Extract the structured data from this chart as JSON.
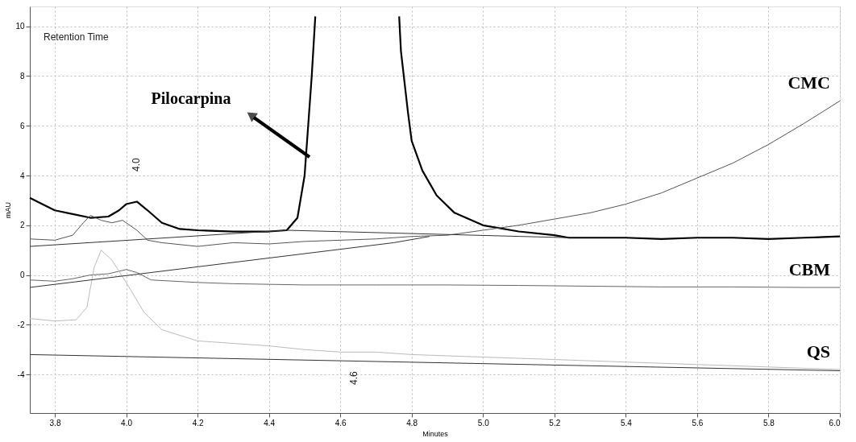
{
  "chart_data": {
    "type": "line",
    "xlabel": "Minutes",
    "ylabel": "mAU",
    "xlim": [
      3.73,
      6.0
    ],
    "ylim": [
      -5.55,
      10.8
    ],
    "xticks": [
      3.8,
      {
        "value": 4.0,
        "label": "4.0"
      },
      4.2,
      4.4,
      4.6,
      4.8,
      {
        "value": 5.0,
        "label": "5.0"
      },
      5.2,
      5.4,
      5.6,
      5.8,
      {
        "value": 6.0,
        "label": "6.0"
      }
    ],
    "yticks": [
      -4,
      -2,
      0,
      2,
      4,
      6,
      8,
      10
    ],
    "grid": true,
    "line_style": "solid",
    "series": [
      {
        "color": "#000000",
        "x": [
          3.73,
          3.8,
          3.85,
          3.9,
          3.95,
          3.98,
          4.0,
          4.03,
          4.06,
          4.1,
          4.15,
          4.2,
          4.3,
          4.4,
          4.45,
          4.48,
          4.5,
          4.52,
          4.53,
          null,
          4.765,
          4.77,
          4.79,
          4.8,
          4.83,
          4.87,
          4.92,
          5.0,
          5.1,
          5.2,
          5.24,
          5.3,
          5.4,
          5.5,
          5.6,
          5.7,
          5.8,
          5.9,
          6.0
        ],
        "values": [
          3.1,
          2.6,
          2.45,
          2.3,
          2.35,
          2.6,
          2.85,
          2.95,
          2.6,
          2.1,
          1.85,
          1.8,
          1.75,
          1.75,
          1.8,
          2.3,
          4.0,
          8.0,
          10.4,
          null,
          10.4,
          9.0,
          6.5,
          5.4,
          4.2,
          3.2,
          2.5,
          2.0,
          1.75,
          1.6,
          1.5,
          1.5,
          1.5,
          1.45,
          1.5,
          1.5,
          1.45,
          1.5,
          1.55
        ]
      },
      {
        "name": "CMC",
        "color": "#555555",
        "x": [
          3.73,
          3.8,
          3.85,
          3.88,
          3.9,
          3.93,
          3.96,
          3.99,
          4.03,
          4.06,
          4.1,
          4.2,
          4.3,
          4.4,
          4.5,
          4.6,
          4.7,
          4.8,
          4.9,
          5.0,
          5.1,
          5.2,
          5.3,
          5.4,
          5.5,
          5.6,
          5.7,
          5.8,
          5.9,
          6.0
        ],
        "values": [
          1.45,
          1.4,
          1.6,
          2.1,
          2.4,
          2.2,
          2.1,
          2.2,
          1.8,
          1.4,
          1.3,
          1.15,
          1.3,
          1.25,
          1.35,
          1.4,
          1.45,
          1.55,
          1.6,
          1.8,
          2.0,
          2.25,
          2.5,
          2.85,
          3.3,
          3.9,
          4.5,
          5.25,
          6.1,
          7.0
        ]
      },
      {
        "name": "CBM",
        "color": "#666666",
        "x": [
          3.73,
          3.8,
          3.85,
          3.9,
          3.95,
          4.0,
          4.03,
          4.07,
          4.2,
          4.3,
          4.5,
          4.7,
          4.9,
          5.1,
          5.3,
          5.5,
          5.7,
          5.9,
          6.0
        ],
        "values": [
          -0.2,
          -0.25,
          -0.15,
          0.0,
          0.05,
          0.22,
          0.1,
          -0.2,
          -0.3,
          -0.35,
          -0.4,
          -0.4,
          -0.4,
          -0.42,
          -0.45,
          -0.48,
          -0.48,
          -0.5,
          -0.5
        ]
      },
      {
        "name": "QS",
        "color": "#bbbbbb",
        "x": [
          3.73,
          3.8,
          3.86,
          3.89,
          3.91,
          3.93,
          3.96,
          4.0,
          4.05,
          4.1,
          4.2,
          4.3,
          4.4,
          4.5,
          4.6,
          4.7,
          4.8,
          4.9,
          5.0,
          5.2,
          5.4,
          5.6,
          5.8,
          6.0
        ],
        "values": [
          -1.75,
          -1.85,
          -1.8,
          -1.3,
          0.3,
          1.0,
          0.6,
          -0.3,
          -1.5,
          -2.2,
          -2.65,
          -2.75,
          -2.85,
          -3.0,
          -3.1,
          -3.1,
          -3.2,
          -3.25,
          -3.3,
          -3.4,
          -3.5,
          -3.6,
          -3.7,
          -3.8
        ]
      },
      {
        "color": "#333333",
        "x": [
          3.73,
          4.45,
          5.24
        ],
        "values": [
          1.15,
          1.8,
          1.5
        ]
      },
      {
        "color": "#333333",
        "x": [
          3.73,
          4.75,
          4.85
        ],
        "values": [
          -0.5,
          1.3,
          1.55
        ]
      },
      {
        "color": "#333333",
        "x": [
          3.73,
          6.0
        ],
        "values": [
          -3.2,
          -3.85
        ]
      }
    ],
    "annotations": [
      "Retention Time",
      "Pilocarpina",
      "4.0",
      "4.6"
    ]
  }
}
